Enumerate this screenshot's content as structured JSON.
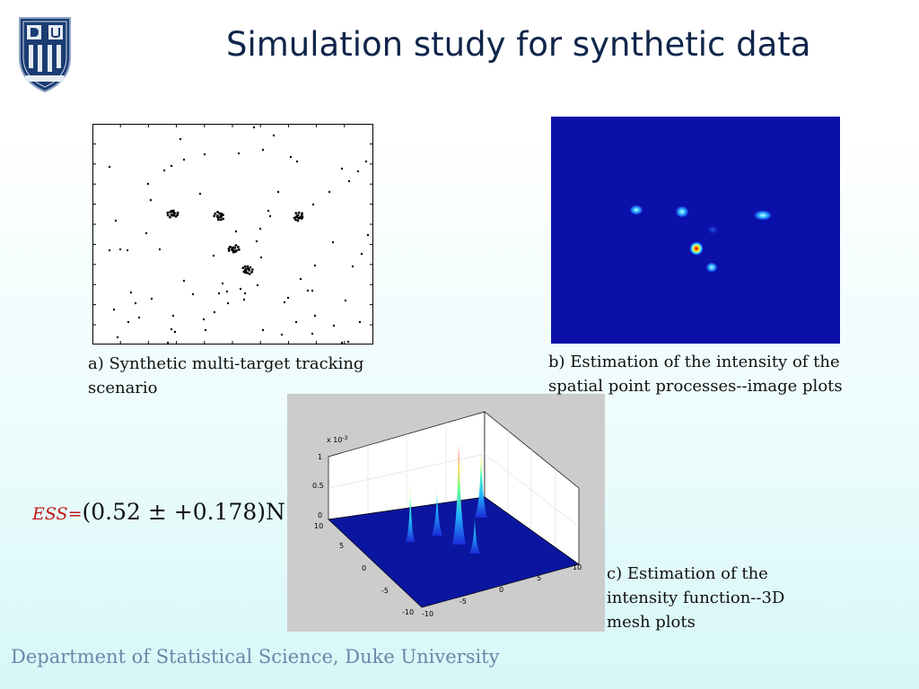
{
  "slide": {
    "title": "Simulation study for synthetic data",
    "footer": "Department of Statistical Science, Duke University",
    "ess_label": "ESS=",
    "ess_formula": "(0.52 ± +0.178)N",
    "logo_icon": "duke-university-shield-logo-icon"
  },
  "panels": {
    "a_caption_line1": "a) Synthetic multi-target tracking",
    "a_caption_line2": "scenario",
    "b_caption_line1": "b) Estimation of the intensity of the",
    "b_caption_line2": "spatial point processes--image plots",
    "c_caption_line1": "c) Estimation of the",
    "c_caption_line2": "intensity  function--3D",
    "c_caption_line3": "mesh plots"
  },
  "mesh_axes": {
    "z_scale": "x 10",
    "z_exp": "-3",
    "z_ticks": [
      "1",
      "0.5",
      "0"
    ],
    "x_ticks": [
      "10",
      "5",
      "0",
      "-5",
      "-10"
    ],
    "y_ticks": [
      "-10",
      "-5",
      "0",
      "5",
      "10"
    ]
  },
  "colors": {
    "title": "#10254a",
    "footer": "#6c86a8",
    "ess_label": "#c01515",
    "image_background": "#0a10a8",
    "mesh_floor": "#0b16a0"
  }
}
